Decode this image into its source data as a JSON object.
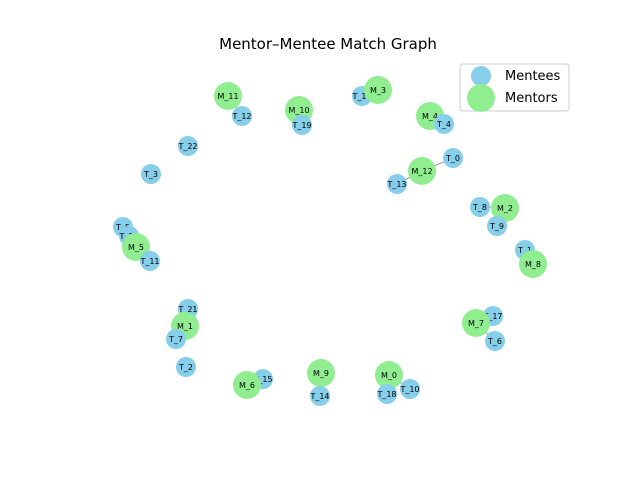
{
  "title": "Mentor–Mentee Match Graph",
  "colors": {
    "mentee": "#87CEEB",
    "mentor": "#90EE90",
    "edge": "#888888"
  },
  "legend": {
    "mentees": "Mentees",
    "mentors": "Mentors"
  },
  "nodes": [
    {
      "id": "M_11",
      "type": "mentor"
    },
    {
      "id": "T_12",
      "type": "mentee"
    },
    {
      "id": "M_10",
      "type": "mentor"
    },
    {
      "id": "T_19",
      "type": "mentee"
    },
    {
      "id": "T_16",
      "type": "mentee"
    },
    {
      "id": "M_3",
      "type": "mentor"
    },
    {
      "id": "M_4",
      "type": "mentor"
    },
    {
      "id": "T_4",
      "type": "mentee"
    },
    {
      "id": "T_22",
      "type": "mentee"
    },
    {
      "id": "T_0",
      "type": "mentee"
    },
    {
      "id": "M_12",
      "type": "mentor"
    },
    {
      "id": "T_13",
      "type": "mentee"
    },
    {
      "id": "T_3",
      "type": "mentee"
    },
    {
      "id": "T_8",
      "type": "mentee"
    },
    {
      "id": "M_2",
      "type": "mentor"
    },
    {
      "id": "T_9",
      "type": "mentee"
    },
    {
      "id": "T_5",
      "type": "mentee"
    },
    {
      "id": "T_20",
      "type": "mentee"
    },
    {
      "id": "M_5",
      "type": "mentor"
    },
    {
      "id": "T_11",
      "type": "mentee"
    },
    {
      "id": "T_1",
      "type": "mentee"
    },
    {
      "id": "M_8",
      "type": "mentor"
    },
    {
      "id": "T_21",
      "type": "mentee"
    },
    {
      "id": "M_1",
      "type": "mentor"
    },
    {
      "id": "T_7",
      "type": "mentee"
    },
    {
      "id": "T_17",
      "type": "mentee"
    },
    {
      "id": "M_7",
      "type": "mentor"
    },
    {
      "id": "T_6",
      "type": "mentee"
    },
    {
      "id": "T_2",
      "type": "mentee"
    },
    {
      "id": "T_15",
      "type": "mentee"
    },
    {
      "id": "M_6",
      "type": "mentor"
    },
    {
      "id": "M_9",
      "type": "mentor"
    },
    {
      "id": "T_14",
      "type": "mentee"
    },
    {
      "id": "M_0",
      "type": "mentor"
    },
    {
      "id": "T_10",
      "type": "mentee"
    },
    {
      "id": "T_18",
      "type": "mentee"
    }
  ],
  "edges": [
    [
      "M_11",
      "T_12"
    ],
    [
      "M_10",
      "T_19"
    ],
    [
      "T_16",
      "M_3"
    ],
    [
      "M_4",
      "T_4"
    ],
    [
      "T_0",
      "M_12"
    ],
    [
      "M_12",
      "T_13"
    ],
    [
      "T_8",
      "M_2"
    ],
    [
      "M_2",
      "T_9"
    ],
    [
      "T_5",
      "M_5"
    ],
    [
      "T_20",
      "M_5"
    ],
    [
      "M_5",
      "T_11"
    ],
    [
      "T_1",
      "M_8"
    ],
    [
      "T_21",
      "M_1"
    ],
    [
      "M_1",
      "T_7"
    ],
    [
      "T_17",
      "M_7"
    ],
    [
      "M_7",
      "T_6"
    ],
    [
      "T_15",
      "M_6"
    ],
    [
      "M_9",
      "T_14"
    ],
    [
      "M_0",
      "T_10"
    ],
    [
      "M_0",
      "T_18"
    ]
  ]
}
